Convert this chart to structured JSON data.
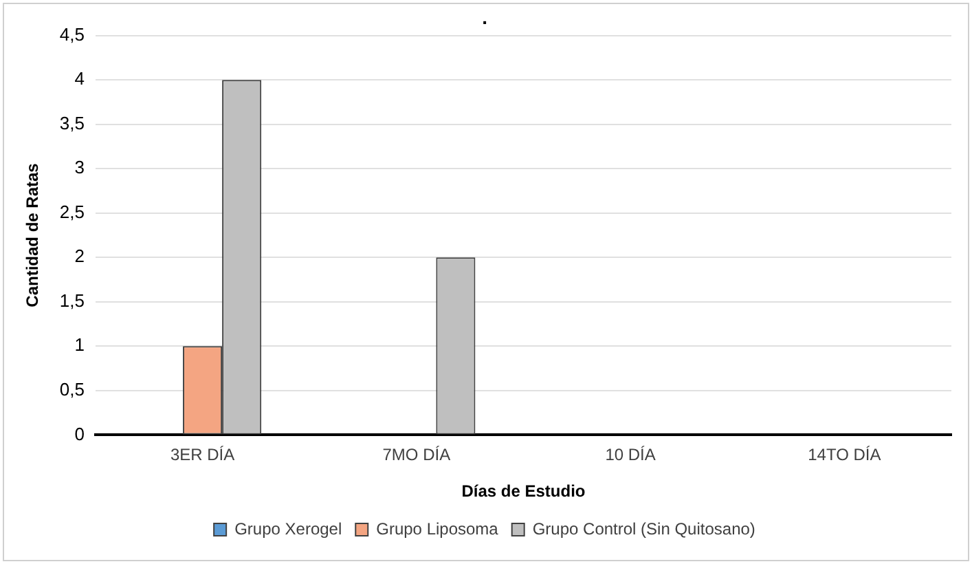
{
  "chart_data": {
    "type": "bar",
    "title": ".",
    "xlabel": "Días de Estudio",
    "ylabel": "Cantidad de Ratas",
    "categories": [
      "3ER DÍA",
      "7MO DÍA",
      "10 DÍA",
      "14TO DÍA"
    ],
    "series": [
      {
        "name": "Grupo Xerogel",
        "color": "#5b9bd5",
        "values": [
          0,
          0,
          0,
          0
        ]
      },
      {
        "name": "Grupo Liposoma",
        "color": "#f4a582",
        "values": [
          1,
          0,
          0,
          0
        ]
      },
      {
        "name": "Grupo Control (Sin Quitosano)",
        "color": "#bfbfbf",
        "values": [
          4,
          2,
          0,
          0
        ]
      }
    ],
    "ylim": [
      0,
      4.5
    ],
    "yticks": [
      0,
      {
        "value": 0.5,
        "label": "0,5"
      },
      1,
      {
        "value": 1.5,
        "label": "1,5"
      },
      2,
      {
        "value": 2.5,
        "label": "2,5"
      },
      3,
      {
        "value": 3.5,
        "label": "3,5"
      },
      4,
      {
        "value": 4.5,
        "label": "4,5"
      }
    ],
    "grid": "y",
    "legend": "bottom"
  }
}
